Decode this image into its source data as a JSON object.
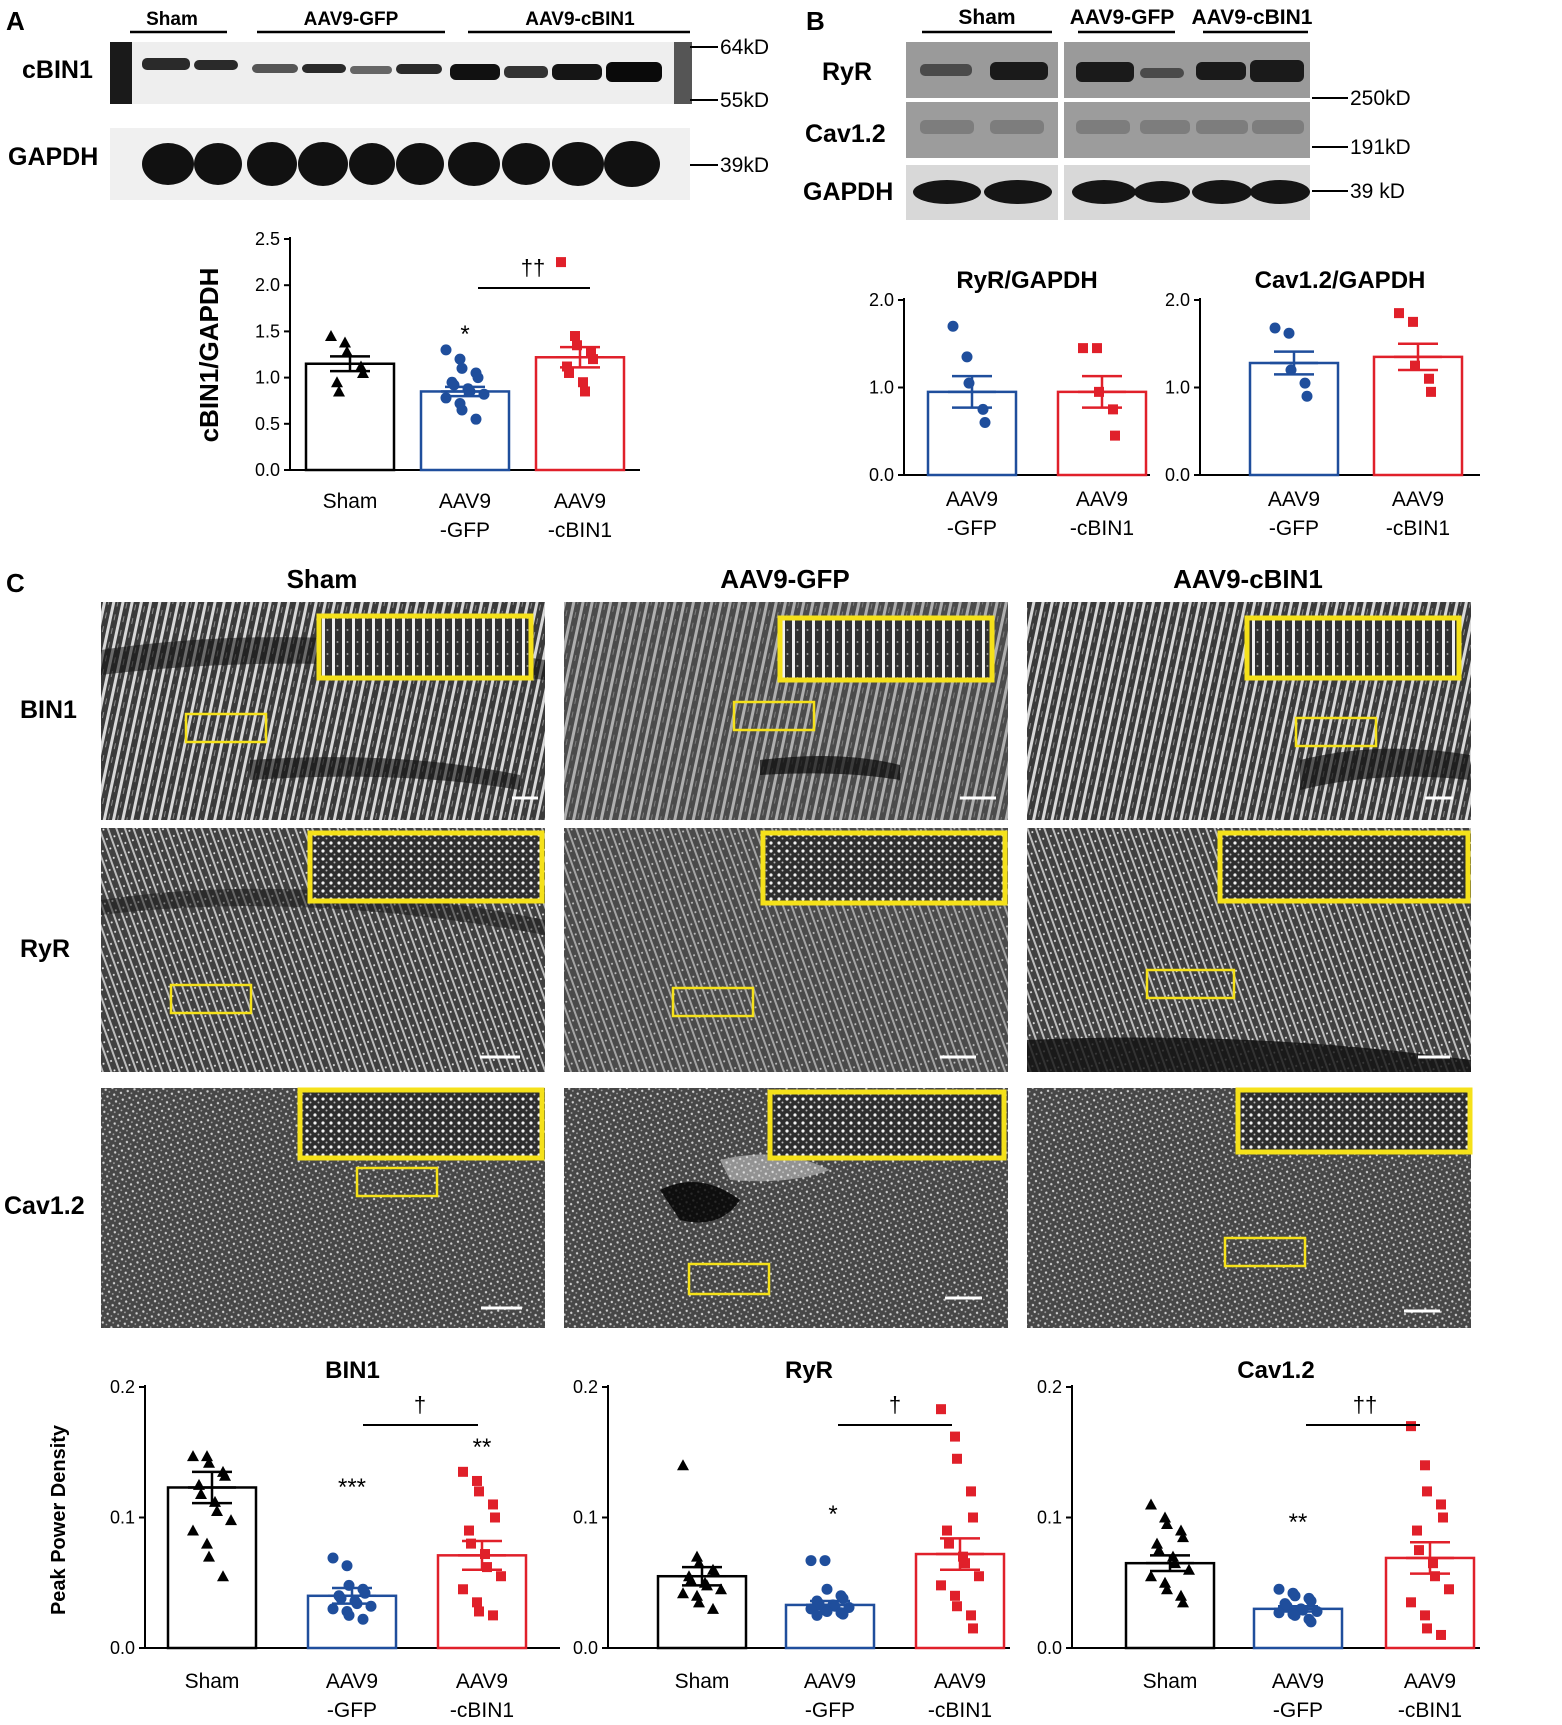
{
  "panels": {
    "A": {
      "letter": "A",
      "blot": {
        "groups": [
          "Sham",
          "AAV9-GFP",
          "AAV9-cBIN1"
        ],
        "rows": [
          "cBIN1",
          "GAPDH"
        ],
        "markers": [
          "64kD",
          "55kD",
          "39kD"
        ]
      }
    },
    "B": {
      "letter": "B",
      "blot": {
        "groups": [
          "Sham",
          "AAV9-GFP",
          "AAV9-cBIN1"
        ],
        "rows": [
          "RyR",
          "Cav1.2",
          "GAPDH"
        ],
        "markers": [
          "250kD",
          "191kD",
          "39 kD"
        ]
      }
    },
    "C": {
      "letter": "C",
      "columns": [
        "Sham",
        "AAV9-GFP",
        "AAV9-cBIN1"
      ],
      "rows": [
        "BIN1",
        "RyR",
        "Cav1.2"
      ]
    }
  },
  "colors": {
    "sham": "#000000",
    "gfp": "#1f4e9c",
    "cbin1": "#e0202a",
    "inset": "#f5e11a"
  },
  "chart_data": [
    {
      "id": "A-cBIN1",
      "type": "bar",
      "title": "",
      "ylabel": "cBIN1/GAPDH",
      "xlabel": "",
      "categories": [
        "Sham",
        "AAV9\n-GFP",
        "AAV9\n-cBIN1"
      ],
      "values": [
        1.15,
        0.85,
        1.22
      ],
      "sem": [
        0.08,
        0.05,
        0.11
      ],
      "points": [
        [
          1.45,
          1.38,
          1.28,
          1.12,
          1.05,
          0.95,
          0.85
        ],
        [
          1.3,
          1.2,
          1.1,
          1.05,
          1.0,
          0.95,
          0.92,
          0.88,
          0.85,
          0.82,
          0.78,
          0.72,
          0.65,
          0.55
        ],
        [
          2.25,
          1.45,
          1.35,
          1.28,
          1.2,
          1.12,
          1.05,
          0.95,
          0.85
        ]
      ],
      "ylim": [
        0,
        2.5
      ],
      "yticks": [
        "0.0",
        "0.5",
        "1.0",
        "1.5",
        "2.0",
        "2.5"
      ],
      "annotations": [
        "*",
        "††"
      ]
    },
    {
      "id": "B-RyR",
      "type": "bar",
      "title": "RyR/GAPDH",
      "categories": [
        "AAV9\n-GFP",
        "AAV9\n-cBIN1"
      ],
      "values": [
        0.95,
        0.95
      ],
      "sem": [
        0.18,
        0.18
      ],
      "points": [
        [
          1.7,
          1.35,
          1.05,
          0.75,
          0.6
        ],
        [
          1.45,
          1.45,
          0.95,
          0.75,
          0.45
        ]
      ],
      "ylim": [
        0,
        2
      ],
      "yticks": [
        "0.0",
        "1.0",
        "2.0"
      ]
    },
    {
      "id": "B-Cav1.2",
      "type": "bar",
      "title": "Cav1.2/GAPDH",
      "categories": [
        "AAV9\n-GFP",
        "AAV9\n-cBIN1"
      ],
      "values": [
        1.28,
        1.35
      ],
      "sem": [
        0.13,
        0.15
      ],
      "points": [
        [
          1.68,
          1.62,
          1.2,
          1.05,
          0.9
        ],
        [
          1.85,
          1.75,
          1.25,
          1.1,
          0.95
        ]
      ],
      "ylim": [
        0,
        2
      ],
      "yticks": [
        "0.0",
        "1.0",
        "2.0"
      ]
    },
    {
      "id": "C-BIN1",
      "type": "bar",
      "title": "BIN1",
      "ylabel": "Peak Power Density",
      "categories": [
        "Sham",
        "AAV9\n-GFP",
        "AAV9\n-cBIN1"
      ],
      "values": [
        0.123,
        0.04,
        0.071
      ],
      "sem": [
        0.012,
        0.006,
        0.011
      ],
      "points": [
        [
          0.147,
          0.147,
          0.142,
          0.135,
          0.132,
          0.125,
          0.118,
          0.112,
          0.105,
          0.098,
          0.09,
          0.08,
          0.07,
          0.055
        ],
        [
          0.069,
          0.063,
          0.048,
          0.045,
          0.042,
          0.04,
          0.038,
          0.036,
          0.034,
          0.032,
          0.03,
          0.028,
          0.025,
          0.022
        ],
        [
          0.135,
          0.128,
          0.12,
          0.11,
          0.1,
          0.09,
          0.08,
          0.072,
          0.062,
          0.055,
          0.045,
          0.035,
          0.028,
          0.025
        ]
      ],
      "ylim": [
        0,
        0.2
      ],
      "yticks": [
        "0.0",
        "0.1",
        "0.2"
      ],
      "annotations": [
        "***",
        "**",
        "†"
      ]
    },
    {
      "id": "C-RyR",
      "type": "bar",
      "title": "RyR",
      "categories": [
        "Sham",
        "AAV9\n-GFP",
        "AAV9\n-cBIN1"
      ],
      "values": [
        0.055,
        0.033,
        0.072
      ],
      "sem": [
        0.007,
        0.003,
        0.012
      ],
      "points": [
        [
          0.14,
          0.07,
          0.065,
          0.06,
          0.058,
          0.055,
          0.052,
          0.05,
          0.048,
          0.045,
          0.042,
          0.04,
          0.035,
          0.03
        ],
        [
          0.067,
          0.067,
          0.045,
          0.04,
          0.038,
          0.036,
          0.034,
          0.033,
          0.032,
          0.031,
          0.03,
          0.029,
          0.028,
          0.027,
          0.026,
          0.025
        ],
        [
          0.183,
          0.162,
          0.145,
          0.12,
          0.1,
          0.09,
          0.08,
          0.07,
          0.065,
          0.055,
          0.048,
          0.04,
          0.032,
          0.025,
          0.015
        ]
      ],
      "ylim": [
        0,
        0.2
      ],
      "yticks": [
        "0.0",
        "0.1",
        "0.2"
      ],
      "annotations": [
        "*",
        "†"
      ]
    },
    {
      "id": "C-Cav1.2",
      "type": "bar",
      "title": "Cav1.2",
      "categories": [
        "Sham",
        "AAV9\n-GFP",
        "AAV9\n-cBIN1"
      ],
      "values": [
        0.065,
        0.03,
        0.069
      ],
      "sem": [
        0.006,
        0.002,
        0.012
      ],
      "points": [
        [
          0.11,
          0.1,
          0.095,
          0.09,
          0.085,
          0.08,
          0.075,
          0.07,
          0.065,
          0.06,
          0.055,
          0.05,
          0.045,
          0.04,
          0.035
        ],
        [
          0.045,
          0.042,
          0.04,
          0.038,
          0.036,
          0.034,
          0.032,
          0.03,
          0.029,
          0.028,
          0.027,
          0.026,
          0.025,
          0.022,
          0.02
        ],
        [
          0.17,
          0.14,
          0.12,
          0.11,
          0.1,
          0.09,
          0.075,
          0.065,
          0.055,
          0.045,
          0.035,
          0.025,
          0.015,
          0.01
        ]
      ],
      "ylim": [
        0,
        0.2
      ],
      "yticks": [
        "0.0",
        "0.1",
        "0.2"
      ],
      "annotations": [
        "**",
        "††"
      ]
    }
  ]
}
